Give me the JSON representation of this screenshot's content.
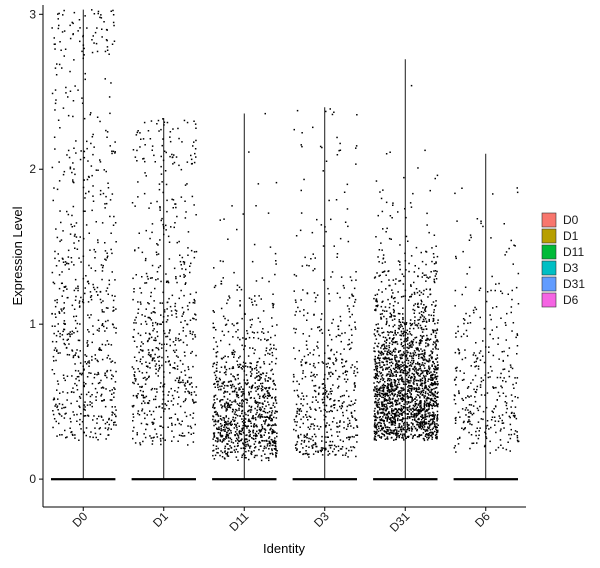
{
  "chart_data": {
    "type": "scatter",
    "subtype": "jittered-violin-points",
    "xlabel": "Identity",
    "ylabel": "Expression Level",
    "ylim": [
      -0.18,
      3.06
    ],
    "yticks": [
      0,
      1,
      2,
      3
    ],
    "categories": [
      "D0",
      "D1",
      "D11",
      "D3",
      "D31",
      "D6"
    ],
    "legend": {
      "placement": "right",
      "entries": [
        {
          "label": "D0",
          "color": "#F8766D"
        },
        {
          "label": "D1",
          "color": "#B79F00"
        },
        {
          "label": "D11",
          "color": "#00BA38"
        },
        {
          "label": "D3",
          "color": "#00BFC4"
        },
        {
          "label": "D31",
          "color": "#619CFF"
        },
        {
          "label": "D6",
          "color": "#F564E3"
        }
      ]
    },
    "series": [
      {
        "name": "D0",
        "max": 3.03,
        "nonzero_points": 700,
        "nonzero_median": 1.1,
        "nonzero_spread": 0.7,
        "nonzero_floor": 0.25
      },
      {
        "name": "D1",
        "max": 2.33,
        "nonzero_points": 650,
        "nonzero_median": 0.9,
        "nonzero_spread": 0.65,
        "nonzero_floor": 0.22
      },
      {
        "name": "D11",
        "max": 2.36,
        "nonzero_points": 1000,
        "nonzero_median": 0.45,
        "nonzero_spread": 0.55,
        "nonzero_floor": 0.12
      },
      {
        "name": "D3",
        "max": 2.4,
        "nonzero_points": 550,
        "nonzero_median": 0.55,
        "nonzero_spread": 0.7,
        "nonzero_floor": 0.14
      },
      {
        "name": "D31",
        "max": 2.71,
        "nonzero_points": 2000,
        "nonzero_median": 0.6,
        "nonzero_spread": 0.45,
        "nonzero_floor": 0.25
      },
      {
        "name": "D6",
        "max": 2.1,
        "nonzero_points": 350,
        "nonzero_median": 0.6,
        "nonzero_spread": 0.55,
        "nonzero_floor": 0.15
      }
    ],
    "grid": false
  }
}
